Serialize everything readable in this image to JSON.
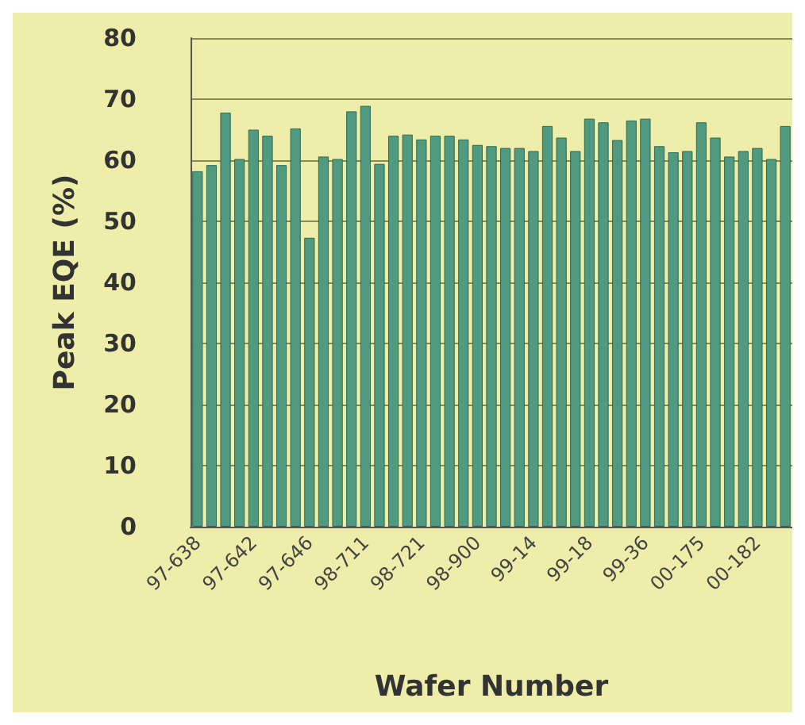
{
  "chart_data": {
    "type": "bar",
    "xlabel": "Wafer Number",
    "ylabel": "Peak EQE (%)",
    "categories": [
      "97-638",
      null,
      null,
      null,
      "97-642",
      null,
      null,
      null,
      "97-646",
      null,
      null,
      null,
      "98-711",
      null,
      null,
      null,
      "98-721",
      null,
      null,
      null,
      "98-900",
      null,
      null,
      null,
      "99-14",
      null,
      null,
      null,
      "99-18",
      null,
      null,
      null,
      "99-36",
      null,
      null,
      null,
      "00-175",
      null,
      null,
      null,
      "00-182",
      null,
      null
    ],
    "values": [
      58.2,
      59.2,
      67.8,
      60.2,
      65,
      64,
      59.2,
      65.2,
      47.3,
      60.6,
      60.2,
      68,
      68.9,
      59.4,
      64,
      64.2,
      63.4,
      64,
      64,
      63.4,
      62.5,
      62.3,
      62,
      62,
      61.5,
      65.6,
      63.7,
      61.5,
      66.8,
      66.2,
      63.3,
      66.5,
      66.8,
      62.3,
      61.3,
      61.5,
      66.2,
      63.7,
      60.6,
      61.5,
      62,
      60.2,
      65.6
    ],
    "color": "#4f9a80",
    "ylim": [
      0,
      80
    ],
    "yticks": [
      0,
      10,
      20,
      30,
      40,
      50,
      60,
      70,
      80
    ],
    "grid": "y"
  }
}
